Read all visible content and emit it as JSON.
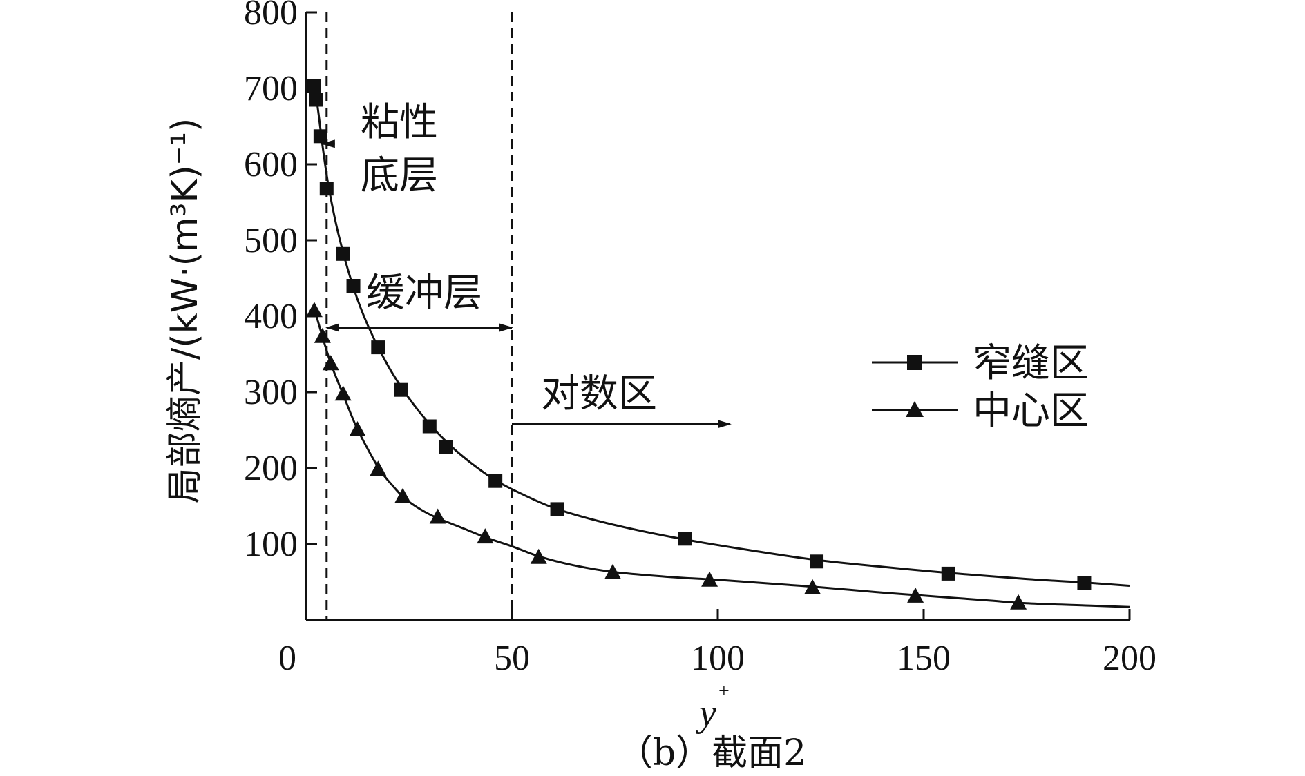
{
  "chart_data": {
    "type": "line",
    "xlabel": "y",
    "xlabel_sup": "+",
    "ylabel": "局部熵产/(kW·(m³K)⁻¹)",
    "caption": "（b）截面2",
    "xlim": [
      0,
      200
    ],
    "ylim": [
      0,
      800
    ],
    "xticks": [
      "0",
      "50",
      "100",
      "150",
      "200"
    ],
    "yticks": [
      "100",
      "200",
      "300",
      "400",
      "500",
      "600",
      "700",
      "800"
    ],
    "xtick_values": [
      0,
      50,
      100,
      150,
      200
    ],
    "ytick_values": [
      100,
      200,
      300,
      400,
      500,
      600,
      700,
      800
    ],
    "grid": false,
    "legend_position": "right",
    "series": [
      {
        "name": "窄缝区",
        "marker": "square",
        "points": [
          [
            2,
            703
          ],
          [
            2.5,
            685
          ],
          [
            3.5,
            637
          ],
          [
            5,
            568
          ],
          [
            9,
            482
          ],
          [
            11.5,
            440
          ],
          [
            17.5,
            359
          ],
          [
            23,
            303
          ],
          [
            30,
            255
          ],
          [
            34,
            228
          ],
          [
            46,
            183
          ],
          [
            61,
            146
          ],
          [
            92,
            107
          ],
          [
            124,
            77
          ],
          [
            156,
            61
          ],
          [
            189,
            49
          ]
        ],
        "curve": [
          [
            2,
            708
          ],
          [
            3,
            668
          ],
          [
            4,
            625
          ],
          [
            5.5,
            570
          ],
          [
            8,
            505
          ],
          [
            11.5,
            438
          ],
          [
            15,
            388
          ],
          [
            20,
            334
          ],
          [
            25,
            292
          ],
          [
            30,
            258
          ],
          [
            35,
            230
          ],
          [
            40,
            207
          ],
          [
            46,
            184
          ],
          [
            52,
            167
          ],
          [
            61,
            146
          ],
          [
            75,
            125
          ],
          [
            92,
            106
          ],
          [
            110,
            90
          ],
          [
            124,
            79
          ],
          [
            140,
            70
          ],
          [
            156,
            62
          ],
          [
            175,
            54
          ],
          [
            190,
            49
          ],
          [
            200,
            45
          ]
        ]
      },
      {
        "name": "中心区",
        "marker": "triangle",
        "points": [
          [
            2,
            407
          ],
          [
            4,
            373
          ],
          [
            6,
            337
          ],
          [
            9,
            297
          ],
          [
            12.5,
            250
          ],
          [
            17.5,
            198
          ],
          [
            23.5,
            162
          ],
          [
            32,
            135
          ],
          [
            43.5,
            109
          ],
          [
            56.5,
            82
          ],
          [
            74.5,
            62
          ],
          [
            98,
            52
          ],
          [
            123,
            42
          ],
          [
            148,
            31
          ],
          [
            173,
            22
          ]
        ],
        "curve": [
          [
            2,
            410
          ],
          [
            4,
            373
          ],
          [
            6,
            338
          ],
          [
            9,
            297
          ],
          [
            12,
            257
          ],
          [
            15,
            225
          ],
          [
            18,
            197
          ],
          [
            21,
            177
          ],
          [
            24,
            160
          ],
          [
            28,
            145
          ],
          [
            32,
            134
          ],
          [
            38,
            121
          ],
          [
            44,
            108
          ],
          [
            50,
            97
          ],
          [
            57,
            83
          ],
          [
            65,
            72
          ],
          [
            75,
            63
          ],
          [
            90,
            56
          ],
          [
            100,
            53
          ],
          [
            115,
            47
          ],
          [
            125,
            43
          ],
          [
            140,
            36
          ],
          [
            150,
            32
          ],
          [
            165,
            26
          ],
          [
            175,
            22
          ],
          [
            190,
            19
          ],
          [
            200,
            17
          ]
        ]
      }
    ],
    "annotations": {
      "viscous_sublayer_line1": "粘性",
      "viscous_sublayer_line2": "底层",
      "buffer_layer": "缓冲层",
      "log_region": "对数区"
    },
    "vlines": [
      5,
      50
    ],
    "arrows": {
      "viscous": {
        "from_x": 7,
        "to_x": 4,
        "y": 627
      },
      "buffer": {
        "from_x": 5,
        "to_x": 50,
        "y": 385
      },
      "log": {
        "from_x": 50,
        "to_x": 103,
        "y": 258
      }
    }
  }
}
